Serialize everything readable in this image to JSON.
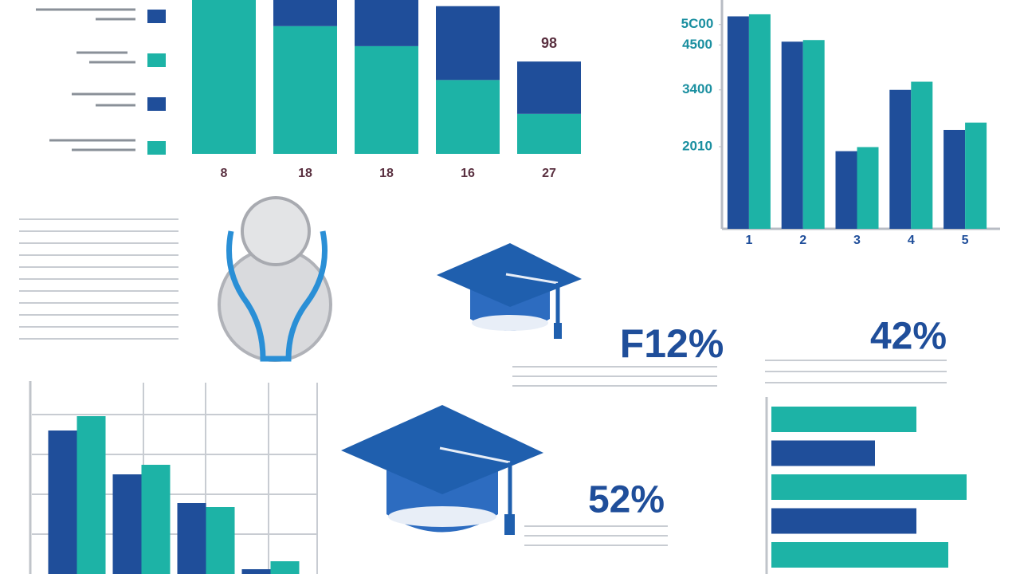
{
  "chart_data": [
    {
      "type": "stacked-bar",
      "categories": [
        "8",
        "18",
        "18",
        "16",
        "27"
      ],
      "annotation": "98",
      "ylim": [
        0,
        100
      ],
      "series": [
        {
          "color": "#1db3a6",
          "values": [
            100,
            83,
            70,
            48,
            26
          ]
        },
        {
          "color": "#1f4e9a",
          "values": [
            0,
            17,
            30,
            48,
            34
          ]
        }
      ]
    },
    {
      "type": "bar",
      "categories": [
        "1",
        "2",
        "3",
        "4",
        "5"
      ],
      "ylim": [
        0,
        5600
      ],
      "yticks": [
        {
          "value": 5000,
          "label": "5C00"
        },
        4500,
        3400,
        2010
      ],
      "series": [
        {
          "color": "#1f4e9a",
          "values": [
            5200,
            4580,
            1900,
            3400,
            2420
          ]
        },
        {
          "color": "#1db3a6",
          "values": [
            5250,
            4620,
            2000,
            3600,
            2600
          ]
        }
      ]
    },
    {
      "type": "bar",
      "ylim": [
        0,
        250
      ],
      "series": [
        {
          "color": "#1f4e9a",
          "values": [
            180,
            125,
            89,
            6
          ]
        },
        {
          "color": "#1db3a6",
          "values": [
            198,
            137,
            84,
            16
          ]
        }
      ]
    },
    {
      "type": "hbar",
      "xlim": [
        0,
        250
      ],
      "values": [
        182,
        130,
        245,
        182,
        222
      ],
      "colors": [
        "#1db3a6",
        "#1f4e9a",
        "#1db3a6",
        "#1f4e9a",
        "#1db3a6"
      ]
    }
  ],
  "callouts": [
    "F12%",
    "42%",
    "52%"
  ]
}
